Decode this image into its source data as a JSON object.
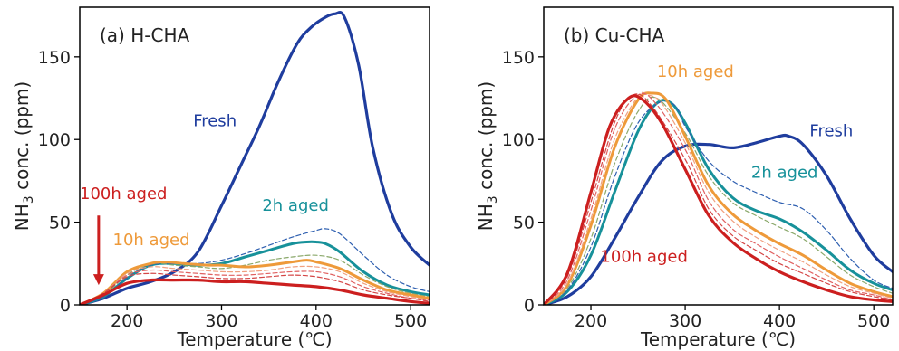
{
  "chart_data": [
    {
      "type": "line",
      "title": "(a) H-CHA",
      "xlabel": "Temperature (℃)",
      "ylabel_main": "NH",
      "ylabel_sub": "3",
      "ylabel_tail": " conc. (ppm)",
      "xlim": [
        150,
        520
      ],
      "ylim": [
        0,
        180
      ],
      "xticks": [
        200,
        300,
        400,
        500
      ],
      "yticks": [
        0,
        50,
        100,
        150
      ],
      "annotations": [
        {
          "text": "Fresh",
          "x": 270,
          "y": 108,
          "color": "#1f3d9e"
        },
        {
          "text": "2h aged",
          "x": 343,
          "y": 57,
          "color": "#17919a"
        },
        {
          "text": "10h aged",
          "x": 185,
          "y": 36,
          "color": "#ee9a3a"
        },
        {
          "text": "100h aged",
          "x": 150,
          "y": 64,
          "color": "#cc1f1f"
        }
      ],
      "arrow": {
        "x": 170,
        "y_from": 54,
        "y_to": 12,
        "color": "#cc1f1f"
      },
      "series": [
        {
          "color": "#1f3d9e",
          "width": 3.2,
          "dash": false,
          "x": [
            150,
            175,
            200,
            225,
            250,
            275,
            300,
            320,
            340,
            360,
            380,
            395,
            410,
            420,
            430,
            445,
            460,
            480,
            500,
            520
          ],
          "y": [
            0,
            4,
            10,
            14,
            20,
            32,
            60,
            84,
            108,
            135,
            158,
            168,
            174,
            176,
            174,
            145,
            95,
            55,
            35,
            24
          ]
        },
        {
          "color": "#17919a",
          "width": 3,
          "dash": false,
          "x": [
            150,
            175,
            200,
            225,
            250,
            275,
            300,
            325,
            350,
            375,
            390,
            400,
            410,
            425,
            450,
            475,
            500,
            520
          ],
          "y": [
            0,
            5,
            16,
            24,
            25,
            24,
            25,
            29,
            33,
            37,
            38,
            38,
            37,
            32,
            20,
            12,
            8,
            6
          ]
        },
        {
          "color": "#2e5fb0",
          "width": 1.2,
          "dash": true,
          "x": [
            150,
            175,
            200,
            225,
            250,
            275,
            300,
            325,
            350,
            375,
            400,
            410,
            425,
            450,
            475,
            500,
            520
          ],
          "y": [
            0,
            5,
            16,
            24,
            25,
            25,
            27,
            31,
            36,
            41,
            45,
            46,
            43,
            30,
            18,
            11,
            8
          ]
        },
        {
          "color": "#8aa86a",
          "width": 1.2,
          "dash": true,
          "x": [
            150,
            175,
            200,
            225,
            250,
            275,
            300,
            325,
            350,
            375,
            400,
            425,
            450,
            475,
            500,
            520
          ],
          "y": [
            0,
            6,
            18,
            25,
            24,
            23,
            22,
            24,
            27,
            29,
            30,
            27,
            18,
            11,
            7,
            5
          ]
        },
        {
          "color": "#ee9a3a",
          "width": 3,
          "dash": false,
          "x": [
            150,
            175,
            200,
            225,
            240,
            260,
            285,
            300,
            325,
            350,
            375,
            390,
            400,
            425,
            450,
            475,
            500,
            520
          ],
          "y": [
            0,
            7,
            20,
            25,
            26,
            25,
            24,
            24,
            23,
            24,
            26,
            27,
            26,
            22,
            15,
            9,
            6,
            4
          ]
        },
        {
          "color": "#f0a080",
          "width": 1.2,
          "dash": true,
          "x": [
            150,
            175,
            200,
            225,
            250,
            275,
            300,
            325,
            350,
            375,
            400,
            425,
            450,
            475,
            500,
            520
          ],
          "y": [
            0,
            7,
            19,
            23,
            22,
            21,
            20,
            20,
            21,
            23,
            23,
            20,
            13,
            8,
            5,
            3
          ]
        },
        {
          "color": "#e06060",
          "width": 1.2,
          "dash": true,
          "x": [
            150,
            175,
            200,
            225,
            250,
            275,
            300,
            325,
            350,
            375,
            400,
            425,
            450,
            475,
            500,
            520
          ],
          "y": [
            0,
            7,
            18,
            21,
            20,
            19,
            18,
            18,
            19,
            20,
            20,
            17,
            11,
            7,
            4,
            3
          ]
        },
        {
          "color": "#d44545",
          "width": 1.2,
          "dash": true,
          "x": [
            150,
            175,
            200,
            225,
            250,
            275,
            300,
            325,
            350,
            375,
            400,
            425,
            450,
            475,
            500,
            520
          ],
          "y": [
            0,
            7,
            17,
            19,
            18,
            17,
            16,
            16,
            17,
            18,
            17,
            14,
            9,
            6,
            4,
            2
          ]
        },
        {
          "color": "#cc1f1f",
          "width": 3.2,
          "dash": false,
          "x": [
            150,
            175,
            200,
            225,
            250,
            275,
            300,
            325,
            350,
            375,
            400,
            425,
            450,
            475,
            500,
            520
          ],
          "y": [
            0,
            6,
            13,
            15,
            15,
            15,
            14,
            14,
            13,
            12,
            11,
            9,
            6,
            4,
            2,
            1
          ]
        }
      ]
    },
    {
      "type": "line",
      "title": "(b) Cu-CHA",
      "xlabel": "Temperature (℃)",
      "ylabel_main": "NH",
      "ylabel_sub": "3",
      "ylabel_tail": " conc. (ppm)",
      "xlim": [
        150,
        520
      ],
      "ylim": [
        0,
        180
      ],
      "xticks": [
        200,
        300,
        400,
        500
      ],
      "yticks": [
        0,
        50,
        100,
        150
      ],
      "annotations": [
        {
          "text": "Fresh",
          "x": 432,
          "y": 102,
          "color": "#1f3d9e"
        },
        {
          "text": "2h aged",
          "x": 370,
          "y": 77,
          "color": "#17919a"
        },
        {
          "text": "10h aged",
          "x": 270,
          "y": 138,
          "color": "#ee9a3a"
        },
        {
          "text": "100h aged",
          "x": 210,
          "y": 26,
          "color": "#cc1f1f"
        }
      ],
      "series": [
        {
          "color": "#1f3d9e",
          "width": 3.2,
          "dash": false,
          "x": [
            150,
            175,
            200,
            225,
            250,
            275,
            300,
            325,
            350,
            375,
            400,
            410,
            425,
            450,
            475,
            500,
            520
          ],
          "y": [
            0,
            5,
            17,
            40,
            65,
            87,
            96,
            97,
            95,
            98,
            102,
            102,
            97,
            78,
            52,
            30,
            20
          ]
        },
        {
          "color": "#17919a",
          "width": 3,
          "dash": false,
          "x": [
            150,
            175,
            200,
            225,
            250,
            270,
            285,
            300,
            325,
            350,
            375,
            400,
            425,
            450,
            475,
            500,
            520
          ],
          "y": [
            0,
            8,
            30,
            68,
            105,
            122,
            122,
            110,
            82,
            65,
            57,
            52,
            44,
            33,
            21,
            13,
            9
          ]
        },
        {
          "color": "#2e5fb0",
          "width": 1.2,
          "dash": true,
          "x": [
            150,
            175,
            200,
            225,
            250,
            275,
            290,
            300,
            325,
            350,
            375,
            400,
            425,
            450,
            475,
            500,
            520
          ],
          "y": [
            0,
            9,
            35,
            77,
            110,
            123,
            120,
            108,
            87,
            75,
            68,
            62,
            58,
            45,
            28,
            15,
            10
          ]
        },
        {
          "color": "#8aa86a",
          "width": 1.2,
          "dash": true,
          "x": [
            150,
            175,
            200,
            225,
            250,
            270,
            300,
            325,
            350,
            375,
            400,
            425,
            450,
            475,
            500,
            520
          ],
          "y": [
            0,
            10,
            40,
            85,
            117,
            125,
            104,
            78,
            62,
            54,
            47,
            40,
            29,
            18,
            11,
            7
          ]
        },
        {
          "color": "#ee9a3a",
          "width": 3,
          "dash": false,
          "x": [
            150,
            175,
            200,
            225,
            250,
            265,
            280,
            300,
            325,
            350,
            375,
            400,
            425,
            450,
            475,
            500,
            520
          ],
          "y": [
            0,
            12,
            48,
            95,
            124,
            128,
            124,
            102,
            72,
            55,
            45,
            37,
            30,
            21,
            13,
            8,
            5
          ]
        },
        {
          "color": "#f0a080",
          "width": 1.2,
          "dash": true,
          "x": [
            150,
            175,
            200,
            225,
            250,
            260,
            275,
            300,
            325,
            350,
            375,
            400,
            425,
            450,
            475,
            500,
            520
          ],
          "y": [
            0,
            13,
            52,
            100,
            126,
            127,
            122,
            98,
            68,
            51,
            41,
            33,
            26,
            18,
            11,
            7,
            4
          ]
        },
        {
          "color": "#e06060",
          "width": 1.2,
          "dash": true,
          "x": [
            150,
            175,
            200,
            225,
            250,
            270,
            300,
            325,
            350,
            375,
            400,
            425,
            450,
            475,
            500,
            520
          ],
          "y": [
            0,
            15,
            57,
            106,
            127,
            121,
            94,
            63,
            46,
            37,
            29,
            22,
            15,
            9,
            6,
            3
          ]
        },
        {
          "color": "#d44545",
          "width": 1.2,
          "dash": true,
          "x": [
            150,
            175,
            200,
            225,
            245,
            265,
            300,
            325,
            350,
            375,
            400,
            425,
            450,
            475,
            500,
            520
          ],
          "y": [
            0,
            17,
            62,
            110,
            127,
            120,
            88,
            58,
            42,
            33,
            25,
            19,
            13,
            8,
            5,
            3
          ]
        },
        {
          "color": "#cc1f1f",
          "width": 3.2,
          "dash": false,
          "x": [
            150,
            175,
            200,
            220,
            240,
            255,
            275,
            300,
            325,
            350,
            375,
            400,
            425,
            450,
            475,
            500,
            520
          ],
          "y": [
            0,
            19,
            68,
            108,
            125,
            124,
            110,
            82,
            54,
            38,
            28,
            20,
            14,
            9,
            5,
            3,
            2
          ]
        }
      ]
    }
  ]
}
